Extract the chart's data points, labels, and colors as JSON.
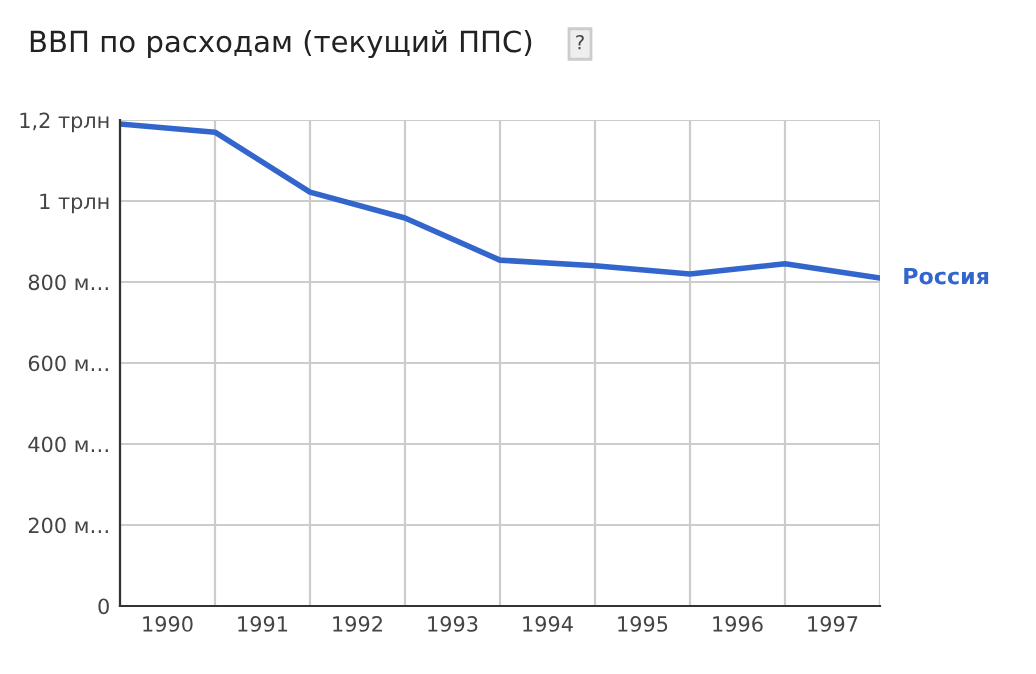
{
  "chart_data": {
    "type": "line",
    "title": "ВВП по расходам (текущий ППС)",
    "annotations": [
      "?"
    ],
    "x": [
      1990,
      1991,
      1992,
      1993,
      1994,
      1995,
      1996,
      1997,
      1998
    ],
    "series": [
      {
        "name": "Россия",
        "color": "#3366cc",
        "values": [
          1.19,
          1.17,
          1.022,
          0.958,
          0.854,
          0.84,
          0.82,
          0.845,
          0.81
        ]
      }
    ],
    "xlim": [
      1990,
      1998
    ],
    "xticks": [
      {
        "value": 1990,
        "label": null
      },
      {
        "value": 1990.5,
        "label": "1990"
      },
      {
        "value": 1991,
        "label": null
      },
      {
        "value": 1991.5,
        "label": "1991"
      },
      {
        "value": 1992,
        "label": null
      },
      {
        "value": 1992.5,
        "label": "1992"
      },
      {
        "value": 1993,
        "label": null
      },
      {
        "value": 1993.5,
        "label": "1993"
      },
      {
        "value": 1994,
        "label": null
      },
      {
        "value": 1994.5,
        "label": "1994"
      },
      {
        "value": 1995,
        "label": null
      },
      {
        "value": 1995.5,
        "label": "1995"
      },
      {
        "value": 1996,
        "label": null
      },
      {
        "value": 1996.5,
        "label": "1996"
      },
      {
        "value": 1997,
        "label": null
      },
      {
        "value": 1997.5,
        "label": "1997"
      },
      {
        "value": 1998,
        "label": null
      }
    ],
    "ylim": [
      0,
      1.2
    ],
    "yticks": [
      0,
      {
        "value": 0.2,
        "label": "200 м…"
      },
      {
        "value": 0.4,
        "label": "400 м…"
      },
      {
        "value": 0.6,
        "label": "600 м…"
      },
      {
        "value": 0.8,
        "label": "800 м…"
      },
      {
        "value": 1,
        "label": "1 трлн"
      },
      {
        "value": 1.2,
        "label": "1,2 трлн"
      }
    ],
    "grid": true,
    "legend": false,
    "marker": "none",
    "line_style": "solid"
  }
}
